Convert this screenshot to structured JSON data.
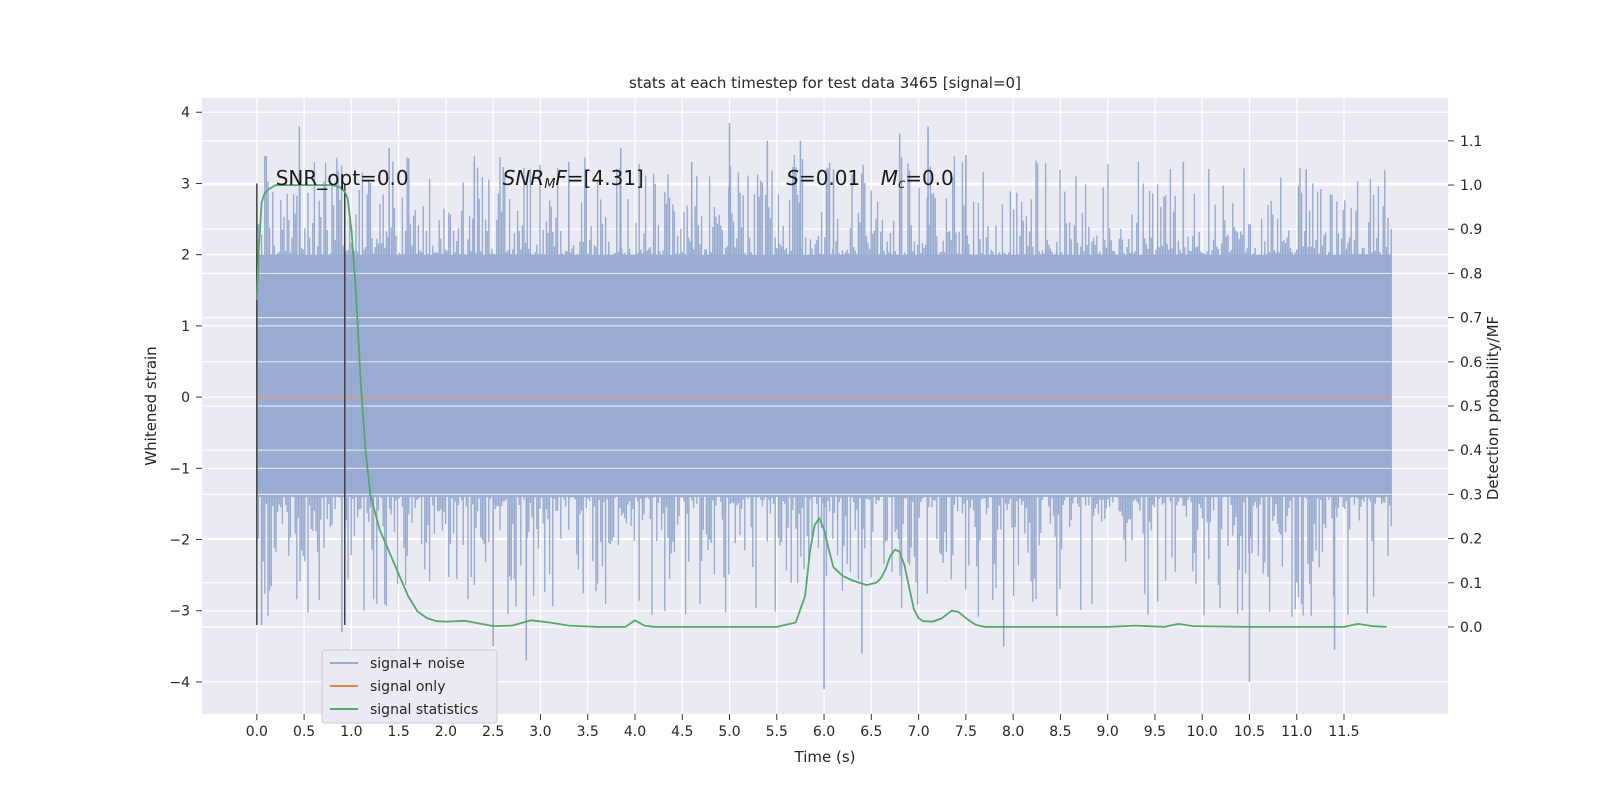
{
  "chart_data": {
    "type": "line",
    "title": "stats at each timestep for test data 3465 [signal=0]",
    "xlabel": "Time (s)",
    "ylabel": "Whitened strain",
    "y2label": "Detection probability/MF",
    "xlim": [
      -0.58,
      12.6
    ],
    "ylim": [
      -4.45,
      4.2
    ],
    "y2lim": [
      -0.197,
      1.197
    ],
    "x_ticks": [
      0.0,
      0.5,
      1.0,
      1.5,
      2.0,
      2.5,
      3.0,
      3.5,
      4.0,
      4.5,
      5.0,
      5.5,
      6.0,
      6.5,
      7.0,
      7.5,
      8.0,
      8.5,
      9.0,
      9.5,
      10.0,
      10.5,
      11.0,
      11.5
    ],
    "x_tick_labels": [
      "0.0",
      "0.5",
      "1.0",
      "1.5",
      "2.0",
      "2.5",
      "3.0",
      "3.5",
      "4.0",
      "4.5",
      "5.0",
      "5.5",
      "6.0",
      "6.5",
      "7.0",
      "7.5",
      "8.0",
      "8.5",
      "9.0",
      "9.5",
      "10.0",
      "10.5",
      "11.0",
      "11.5"
    ],
    "y_ticks": [
      -4,
      -3,
      -2,
      -1,
      0,
      1,
      2,
      3,
      4
    ],
    "y_tick_labels": [
      "−4",
      "−3",
      "−2",
      "−1",
      "0",
      "1",
      "2",
      "3",
      "4"
    ],
    "y2_ticks": [
      0.0,
      0.1,
      0.2,
      0.3,
      0.4,
      0.5,
      0.6,
      0.7,
      0.8,
      0.9,
      1.0,
      1.1
    ],
    "y2_tick_labels": [
      "0.0",
      "0.1",
      "0.2",
      "0.3",
      "0.4",
      "0.5",
      "0.6",
      "0.7",
      "0.8",
      "0.9",
      "1.0",
      "1.1"
    ],
    "grid": true,
    "legend_position": "bottom-left",
    "legend": [
      "signal+ noise",
      "signal only",
      "signal statistics"
    ],
    "colors": {
      "noise": "#99abd0",
      "signal": "#dd8452",
      "stats": "#55a868",
      "vline": "#404040",
      "background": "#eaeaf2",
      "grid": "#ffffff"
    },
    "noise_series": {
      "name": "signal+ noise",
      "x_range": [
        0.0,
        12.0
      ],
      "band_y": [
        -1.4,
        2.0
      ],
      "notable_peaks": [
        {
          "x": 0.45,
          "y": 3.8
        },
        {
          "x": 1.4,
          "y": 3.5
        },
        {
          "x": 2.3,
          "y": 3.3
        },
        {
          "x": 3.3,
          "y": 3.3
        },
        {
          "x": 3.85,
          "y": 3.5
        },
        {
          "x": 4.6,
          "y": 3.3
        },
        {
          "x": 5.0,
          "y": 3.85
        },
        {
          "x": 5.4,
          "y": 3.6
        },
        {
          "x": 5.75,
          "y": 3.6
        },
        {
          "x": 6.1,
          "y": 3.2
        },
        {
          "x": 6.8,
          "y": 3.7
        },
        {
          "x": 7.1,
          "y": 3.8
        },
        {
          "x": 7.5,
          "y": 3.4
        },
        {
          "x": 9.8,
          "y": 3.3
        },
        {
          "x": 11.1,
          "y": 3.2
        }
      ],
      "notable_troughs": [
        {
          "x": 0.05,
          "y": -3.2
        },
        {
          "x": 0.9,
          "y": -3.3
        },
        {
          "x": 2.5,
          "y": -3.5
        },
        {
          "x": 2.85,
          "y": -3.7
        },
        {
          "x": 6.0,
          "y": -4.1
        },
        {
          "x": 6.4,
          "y": -3.6
        },
        {
          "x": 7.9,
          "y": -3.5
        },
        {
          "x": 10.5,
          "y": -4.0
        },
        {
          "x": 11.4,
          "y": -3.55
        }
      ]
    },
    "signal_series": {
      "name": "signal only",
      "x": [
        0.0,
        12.0
      ],
      "y": [
        0.0,
        0.0
      ]
    },
    "stats_series": {
      "name": "signal statistics",
      "x": [
        0.0,
        0.02,
        0.05,
        0.08,
        0.12,
        0.2,
        0.3,
        0.5,
        0.7,
        0.8,
        0.88,
        0.93,
        0.96,
        1.0,
        1.05,
        1.1,
        1.15,
        1.2,
        1.3,
        1.4,
        1.5,
        1.6,
        1.7,
        1.8,
        1.9,
        2.0,
        2.2,
        2.5,
        2.7,
        2.9,
        3.1,
        3.3,
        3.6,
        3.9,
        4.0,
        4.1,
        4.2,
        4.5,
        5.0,
        5.5,
        5.7,
        5.8,
        5.85,
        5.9,
        5.95,
        6.0,
        6.05,
        6.1,
        6.2,
        6.3,
        6.45,
        6.55,
        6.6,
        6.65,
        6.7,
        6.75,
        6.8,
        6.85,
        6.9,
        6.95,
        7.0,
        7.05,
        7.15,
        7.25,
        7.35,
        7.42,
        7.5,
        7.6,
        7.7,
        7.9,
        8.3,
        9.0,
        9.3,
        9.6,
        9.75,
        9.9,
        10.5,
        11.0,
        11.5,
        11.65,
        11.8,
        11.95
      ],
      "y": [
        0.74,
        0.85,
        0.96,
        0.98,
        0.99,
        1.0,
        1.0,
        1.0,
        1.0,
        1.0,
        0.995,
        0.985,
        0.97,
        0.9,
        0.75,
        0.55,
        0.4,
        0.3,
        0.22,
        0.17,
        0.12,
        0.07,
        0.035,
        0.02,
        0.013,
        0.012,
        0.014,
        0.002,
        0.003,
        0.015,
        0.01,
        0.003,
        0.0,
        0.0,
        0.015,
        0.003,
        0.0,
        0.0,
        0.0,
        0.0,
        0.01,
        0.07,
        0.17,
        0.23,
        0.246,
        0.22,
        0.175,
        0.135,
        0.115,
        0.105,
        0.095,
        0.1,
        0.11,
        0.13,
        0.16,
        0.175,
        0.17,
        0.14,
        0.09,
        0.04,
        0.02,
        0.013,
        0.012,
        0.02,
        0.037,
        0.034,
        0.02,
        0.005,
        0.0,
        0.0,
        0.0,
        0.0,
        0.003,
        0.0,
        0.007,
        0.002,
        0.0,
        0.0,
        0.0,
        0.007,
        0.002,
        0.0
      ]
    },
    "vertical_lines": [
      {
        "x": 0.0,
        "y": [
          -3.2,
          3.0
        ]
      },
      {
        "x": 0.93,
        "y": [
          -3.2,
          3.0
        ]
      }
    ],
    "annotations": [
      {
        "parts": [
          {
            "text": "SNR_opt=0.0"
          }
        ],
        "x": 0.2,
        "y": 2.98
      },
      {
        "parts": [
          {
            "text": "SNR",
            "italic": true
          },
          {
            "text": "M",
            "italic": true,
            "sub": true
          },
          {
            "text": "F",
            "italic": true
          },
          {
            "text": "=[4.31]"
          }
        ],
        "x": 2.6,
        "y": 2.98
      },
      {
        "parts": [
          {
            "text": "S",
            "italic": true
          },
          {
            "text": "=0.01"
          }
        ],
        "x": 5.6,
        "y": 2.98
      },
      {
        "parts": [
          {
            "text": "M",
            "italic": true
          },
          {
            "text": "c",
            "italic": true,
            "sub": true
          },
          {
            "text": "=0.0"
          }
        ],
        "x": 6.6,
        "y": 2.98
      }
    ]
  }
}
